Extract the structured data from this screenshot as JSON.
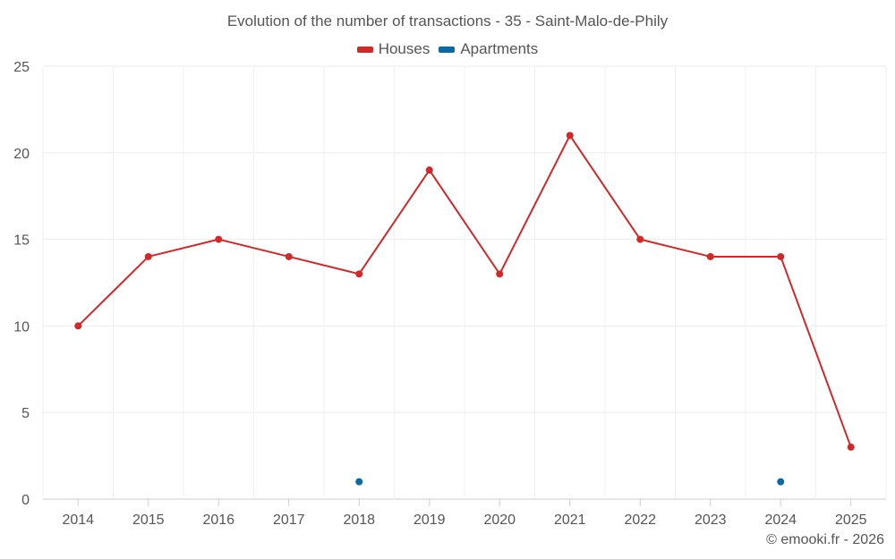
{
  "chart_data": {
    "type": "line",
    "title": "Evolution of the number of transactions - 35 - Saint-Malo-de-Phily",
    "categories": [
      "2014",
      "2015",
      "2016",
      "2017",
      "2018",
      "2019",
      "2020",
      "2021",
      "2022",
      "2023",
      "2024",
      "2025"
    ],
    "series": [
      {
        "name": "Houses",
        "color": "#d32828",
        "values": [
          10,
          14,
          15,
          14,
          13,
          19,
          13,
          21,
          15,
          14,
          14,
          3
        ]
      },
      {
        "name": "Apartments",
        "color": "#0a6aa1",
        "values": [
          null,
          null,
          null,
          null,
          1,
          null,
          null,
          null,
          null,
          null,
          1,
          null
        ]
      }
    ],
    "ylim": [
      0,
      25
    ],
    "yticks": [
      0,
      5,
      10,
      15,
      20,
      25
    ],
    "xlabel": "",
    "ylabel": "",
    "grid": true,
    "legend": "top-center"
  },
  "credit": "© emooki.fr - 2026"
}
